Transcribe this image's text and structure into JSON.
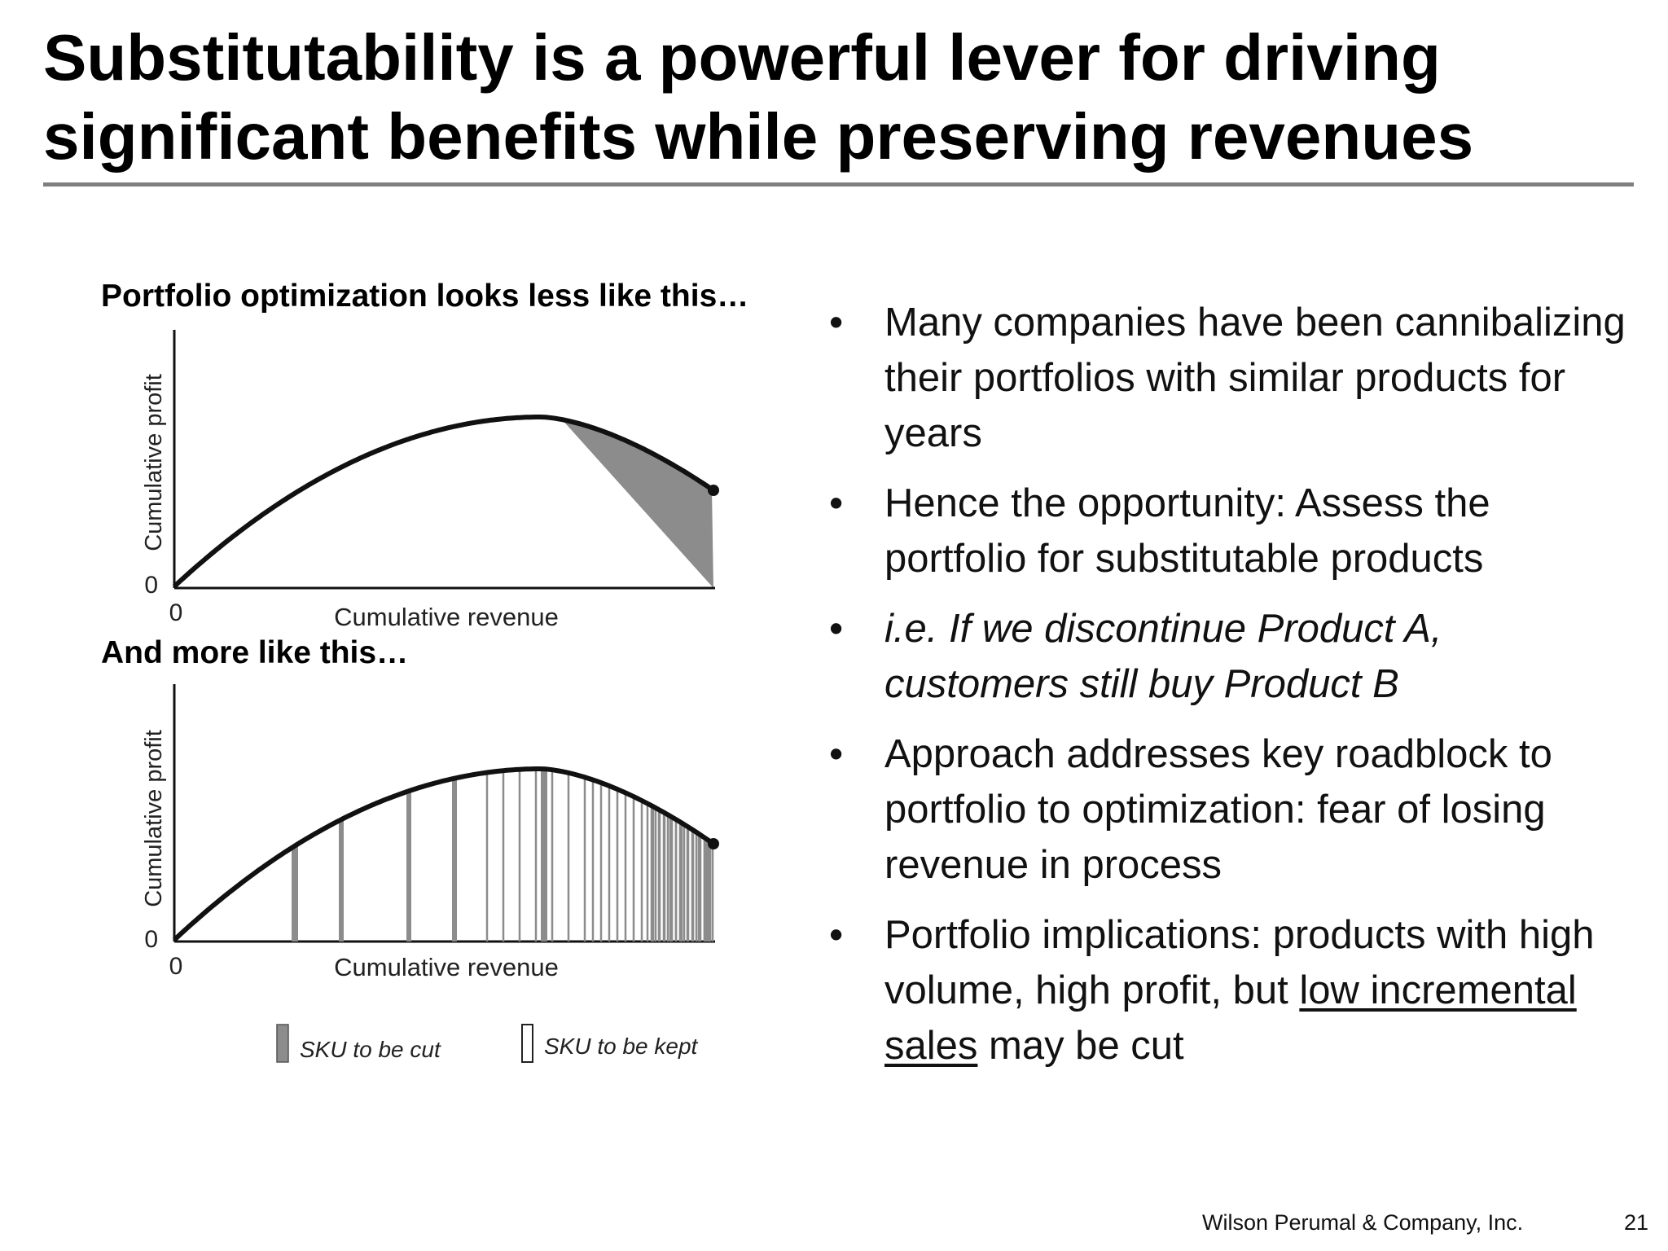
{
  "title": {
    "line1": "Substitutability is a powerful lever for driving",
    "line2": "significant benefits while preserving revenues"
  },
  "charts": {
    "top_caption": "Portfolio optimization looks less like this…",
    "bottom_caption": "And more like this…"
  },
  "chart_data": [
    {
      "type": "area",
      "title": "Portfolio optimization looks less like this…",
      "xlabel": "Cumulative revenue",
      "ylabel": "Cumulative profit",
      "x_ticks": [
        "0"
      ],
      "y_ticks": [
        "0"
      ],
      "curve": "concave cumulative profit curve rising to a peak then declining",
      "shaded_region": "SKUs to be cut (tail of the curve past the peak)",
      "grid": false
    },
    {
      "type": "area",
      "title": "And more like this…",
      "xlabel": "Cumulative revenue",
      "ylabel": "Cumulative profit",
      "x_ticks": [
        "0"
      ],
      "y_ticks": [
        "0"
      ],
      "curve": "concave cumulative profit curve rising to a peak then declining",
      "shaded_region": "SKUs to be cut scattered throughout the curve, denser toward the tail",
      "legend": [
        "SKU to be cut",
        "SKU to be kept"
      ],
      "legend_placement": "bottom",
      "grid": false
    }
  ],
  "bullets": [
    {
      "text": "Many companies have been cannibalizing their portfolios with similar products for years"
    },
    {
      "text": "Hence the opportunity: Assess the portfolio for substitutable products"
    },
    {
      "text": "i.e. If we discontinue Product A, customers still buy Product B"
    },
    {
      "before": "Approach addresses key roadblock to portfolio to optimization: fear of losing revenue in process"
    },
    {
      "before": "Portfolio implications: products with high volume, high profit, but ",
      "underlined": "low incremental sales",
      "after": " may be cut"
    }
  ],
  "bullet_glyph": "•",
  "footer": {
    "company": "Wilson Perumal & Company, Inc.",
    "page_number": "21"
  },
  "colors": {
    "rule": "#7f7f7f",
    "cut_fill": "#8c8c8c",
    "curve": "#111111"
  }
}
